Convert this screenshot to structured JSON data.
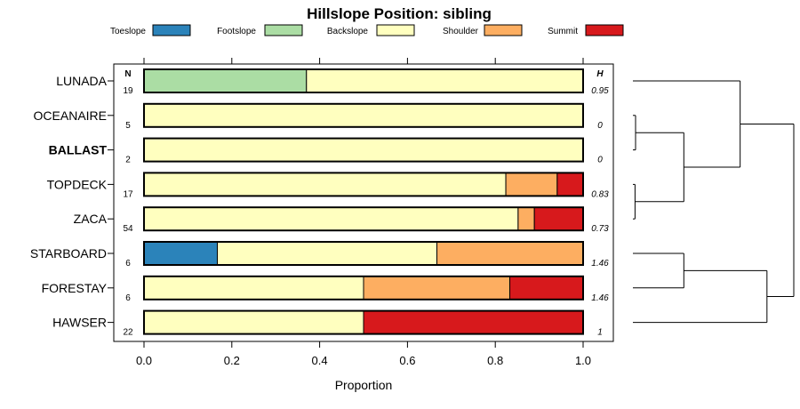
{
  "chart_data": {
    "type": "bar",
    "orientation": "horizontal",
    "stacked": true,
    "title": "Hillslope Position: sibling",
    "xlabel": "Proportion",
    "ylabel": "",
    "xlim": [
      0,
      1
    ],
    "xticks": [
      "0.0",
      "0.2",
      "0.4",
      "0.6",
      "0.8",
      "1.0"
    ],
    "n_header": "N",
    "h_header": "H",
    "legend_position": "top",
    "series": [
      {
        "name": "Toeslope",
        "color": "#2b83ba"
      },
      {
        "name": "Footslope",
        "color": "#abdda4"
      },
      {
        "name": "Backslope",
        "color": "#ffffbf"
      },
      {
        "name": "Shoulder",
        "color": "#fdae61"
      },
      {
        "name": "Summit",
        "color": "#d7191c"
      }
    ],
    "rows": [
      {
        "label": "LUNADA",
        "bold": false,
        "n": "19",
        "h": "0.95",
        "values": [
          0,
          0.37,
          0.63,
          0,
          0
        ]
      },
      {
        "label": "OCEANAIRE",
        "bold": false,
        "n": "5",
        "h": "0",
        "values": [
          0,
          0,
          1.0,
          0,
          0
        ]
      },
      {
        "label": "BALLAST",
        "bold": true,
        "n": "2",
        "h": "0",
        "values": [
          0,
          0,
          1.0,
          0,
          0
        ]
      },
      {
        "label": "TOPDECK",
        "bold": false,
        "n": "17",
        "h": "0.83",
        "values": [
          0,
          0,
          0.824,
          0.117,
          0.059
        ]
      },
      {
        "label": "ZACA",
        "bold": false,
        "n": "54",
        "h": "0.73",
        "values": [
          0,
          0,
          0.852,
          0.037,
          0.111
        ]
      },
      {
        "label": "STARBOARD",
        "bold": false,
        "n": "6",
        "h": "1.46",
        "values": [
          0.167,
          0,
          0.5,
          0.333,
          0
        ]
      },
      {
        "label": "FORESTAY",
        "bold": false,
        "n": "6",
        "h": "1.46",
        "values": [
          0,
          0,
          0.5,
          0.333,
          0.167
        ]
      },
      {
        "label": "HAWSER",
        "bold": false,
        "n": "22",
        "h": "1",
        "values": [
          0,
          0,
          0.5,
          0,
          0.5
        ]
      }
    ],
    "dendrogram": {
      "type": "hierarchical-clustering",
      "merges": [
        {
          "id": "a",
          "left": "OCEANAIRE",
          "right": "BALLAST",
          "height": 0.05
        },
        {
          "id": "b",
          "left": "TOPDECK",
          "right": "ZACA",
          "height": 0.04
        },
        {
          "id": "c",
          "left": "a",
          "right": "b",
          "height": 0.95
        },
        {
          "id": "d",
          "left": "LUNADA",
          "right": "c",
          "height": 2.0
        },
        {
          "id": "e",
          "left": "STARBOARD",
          "right": "FORESTAY",
          "height": 0.95
        },
        {
          "id": "f",
          "left": "e",
          "right": "HAWSER",
          "height": 2.5
        },
        {
          "id": "g",
          "left": "d",
          "right": "f",
          "height": 3.0
        }
      ]
    }
  }
}
